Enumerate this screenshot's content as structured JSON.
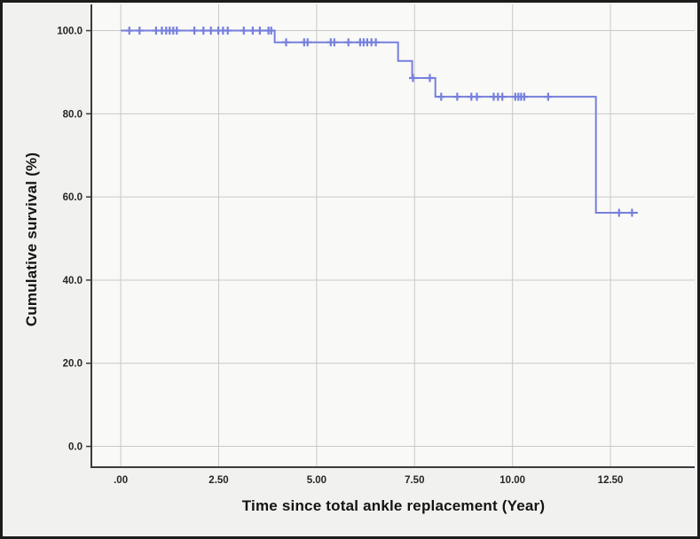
{
  "chart_data": {
    "type": "line",
    "subtype": "kaplan-meier-step",
    "title": "",
    "xlabel": "Time since total ankle replacement (Year)",
    "ylabel": "Cumulative survival (%)",
    "xlim": [
      -0.75,
      14.65
    ],
    "ylim": [
      -5.0,
      106.3
    ],
    "grid": true,
    "legend": "none",
    "x_ticks": {
      "values": [
        0,
        2.5,
        5,
        7.5,
        10,
        12.5
      ],
      "labels": [
        ".00",
        "2.50",
        "5.00",
        "7.50",
        "10.00",
        "12.50"
      ]
    },
    "y_ticks": {
      "values": [
        0,
        20,
        40,
        60,
        80,
        100
      ],
      "labels": [
        "0.0",
        "20.0",
        "40.0",
        "60.0",
        "80.0",
        "100.0"
      ]
    },
    "series": [
      {
        "name": "cumulative-survival",
        "color": "#7680DC",
        "step_points": [
          [
            0,
            100
          ],
          [
            3.93,
            97.2
          ],
          [
            7.08,
            92.7
          ],
          [
            7.44,
            88.6
          ],
          [
            8.03,
            84.1
          ],
          [
            12.13,
            56.2
          ]
        ],
        "end_time": 13.2,
        "censored_points": [
          [
            0.22,
            100
          ],
          [
            0.48,
            100
          ],
          [
            0.9,
            100
          ],
          [
            1.05,
            100
          ],
          [
            1.16,
            100
          ],
          [
            1.25,
            100
          ],
          [
            1.34,
            100
          ],
          [
            1.43,
            100
          ],
          [
            1.88,
            100
          ],
          [
            2.11,
            100
          ],
          [
            2.3,
            100
          ],
          [
            2.49,
            100
          ],
          [
            2.61,
            100
          ],
          [
            2.73,
            100
          ],
          [
            3.14,
            100
          ],
          [
            3.37,
            100
          ],
          [
            3.55,
            100
          ],
          [
            3.77,
            100
          ],
          [
            3.84,
            100
          ],
          [
            4.22,
            97.2
          ],
          [
            4.68,
            97.2
          ],
          [
            4.77,
            97.2
          ],
          [
            5.36,
            97.2
          ],
          [
            5.45,
            97.2
          ],
          [
            5.81,
            97.2
          ],
          [
            6.11,
            97.2
          ],
          [
            6.2,
            97.2
          ],
          [
            6.29,
            97.2
          ],
          [
            6.4,
            97.2
          ],
          [
            6.51,
            97.2
          ],
          [
            7.46,
            88.6
          ],
          [
            7.89,
            88.6
          ],
          [
            8.18,
            84.1
          ],
          [
            8.59,
            84.1
          ],
          [
            8.95,
            84.1
          ],
          [
            9.09,
            84.1
          ],
          [
            9.52,
            84.1
          ],
          [
            9.63,
            84.1
          ],
          [
            9.74,
            84.1
          ],
          [
            10.07,
            84.1
          ],
          [
            10.15,
            84.1
          ],
          [
            10.22,
            84.1
          ],
          [
            10.3,
            84.1
          ],
          [
            10.91,
            84.1
          ],
          [
            12.72,
            56.2
          ],
          [
            13.05,
            56.2
          ]
        ]
      }
    ],
    "colors": {
      "curve": "#7680DC",
      "grid": "#C9C9C9",
      "axis": "#3B3B3B",
      "tick_text": "#262626",
      "title_text": "#141414",
      "panel": "#F9F9F7",
      "background": "#F1F1EF",
      "frame": "#1C1C1C"
    }
  }
}
